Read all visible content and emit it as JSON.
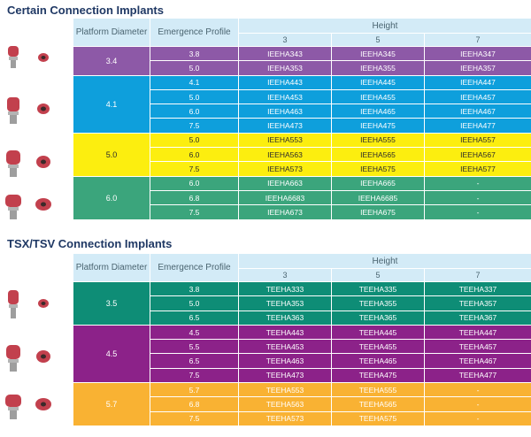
{
  "header": {
    "platform_diameter": "Platform Diameter",
    "emergence_profile": "Emergence Profile",
    "height": "Height",
    "heights": [
      "3",
      "5",
      "7"
    ]
  },
  "sections": [
    {
      "title": "Certain Connection Implants",
      "groups": [
        {
          "diameter": "3.4",
          "color": "#8d59a7",
          "text_color": "#ffffff",
          "rows": [
            {
              "profile": "3.8",
              "h3": "IEEHA343",
              "h5": "IEEHA345",
              "h7": "IEEHA347"
            },
            {
              "profile": "5.0",
              "h3": "IEEHA353",
              "h5": "IEEHA355",
              "h7": "IEEHA357"
            }
          ]
        },
        {
          "diameter": "4.1",
          "color": "#0e9fdc",
          "text_color": "#ffffff",
          "rows": [
            {
              "profile": "4.1",
              "h3": "IEEHA443",
              "h5": "IEEHA445",
              "h7": "IEEHA447"
            },
            {
              "profile": "5.0",
              "h3": "IEEHA453",
              "h5": "IEEHA455",
              "h7": "IEEHA457"
            },
            {
              "profile": "6.0",
              "h3": "IEEHA463",
              "h5": "IEEHA465",
              "h7": "IEEHA467"
            },
            {
              "profile": "7.5",
              "h3": "IEEHA473",
              "h5": "IEEHA475",
              "h7": "IEEHA477"
            }
          ]
        },
        {
          "diameter": "5.0",
          "color": "#fcee0f",
          "text_color": "#2b2b2b",
          "rows": [
            {
              "profile": "5.0",
              "h3": "IEEHA553",
              "h5": "IEEHA555",
              "h7": "IEEHA557"
            },
            {
              "profile": "6.0",
              "h3": "IEEHA563",
              "h5": "IEEHA565",
              "h7": "IEEHA567"
            },
            {
              "profile": "7.5",
              "h3": "IEEHA573",
              "h5": "IEEHA575",
              "h7": "IEEHA577"
            }
          ]
        },
        {
          "diameter": "6.0",
          "color": "#3ba57c",
          "text_color": "#ffffff",
          "rows": [
            {
              "profile": "6.0",
              "h3": "IEEHA663",
              "h5": "IEEHA665",
              "h7": "-"
            },
            {
              "profile": "6.8",
              "h3": "IEEHA6683",
              "h5": "IEEHA6685",
              "h7": "-"
            },
            {
              "profile": "7.5",
              "h3": "IEEHA673",
              "h5": "IEEHA675",
              "h7": "-"
            }
          ]
        }
      ]
    },
    {
      "title": "TSX/TSV Connection Implants",
      "groups": [
        {
          "diameter": "3.5",
          "color": "#0e8d76",
          "text_color": "#ffffff",
          "rows": [
            {
              "profile": "3.8",
              "h3": "TEEHA333",
              "h5": "TEEHA335",
              "h7": "TEEHA337"
            },
            {
              "profile": "5.0",
              "h3": "TEEHA353",
              "h5": "TEEHA355",
              "h7": "TEEHA357"
            },
            {
              "profile": "6.5",
              "h3": "TEEHA363",
              "h5": "TEEHA365",
              "h7": "TEEHA367"
            }
          ]
        },
        {
          "diameter": "4.5",
          "color": "#8c2289",
          "text_color": "#ffffff",
          "rows": [
            {
              "profile": "4.5",
              "h3": "TEEHA443",
              "h5": "TEEHA445",
              "h7": "TEEHA447"
            },
            {
              "profile": "5.5",
              "h3": "TEEHA453",
              "h5": "TEEHA455",
              "h7": "TEEHA457"
            },
            {
              "profile": "6.5",
              "h3": "TEEHA463",
              "h5": "TEEHA465",
              "h7": "TEEHA467"
            },
            {
              "profile": "7.5",
              "h3": "TEEHA473",
              "h5": "TEEHA475",
              "h7": "TEEHA477"
            }
          ]
        },
        {
          "diameter": "5.7",
          "color": "#f9b233",
          "text_color": "#ffffff",
          "rows": [
            {
              "profile": "5.7",
              "h3": "TEEHA553",
              "h5": "TEEHA555",
              "h7": "-"
            },
            {
              "profile": "6.8",
              "h3": "TEEHA563",
              "h5": "TEEHA565",
              "h7": "-"
            },
            {
              "profile": "7.5",
              "h3": "TEEHA573",
              "h5": "TEEHA575",
              "h7": "-"
            }
          ]
        }
      ]
    }
  ]
}
